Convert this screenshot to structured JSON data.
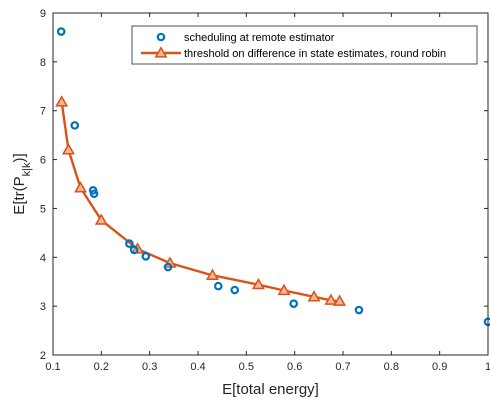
{
  "chart_data": {
    "type": "scatter",
    "xlabel": "E[total energy]",
    "ylabel": "E[tr(P_{k|k})]",
    "xlim": [
      0.1,
      1.0
    ],
    "ylim": [
      2,
      9
    ],
    "x_ticks": [
      0.1,
      0.2,
      0.3,
      0.4,
      0.5,
      0.6,
      0.7,
      0.8,
      0.9,
      1.0
    ],
    "x_tick_labels": [
      "0.1",
      "0.2",
      "0.3",
      "0.4",
      "0.5",
      "0.6",
      "0.7",
      "0.8",
      "0.9",
      "1"
    ],
    "y_ticks": [
      2,
      3,
      4,
      5,
      6,
      7,
      8,
      9
    ],
    "y_tick_labels": [
      "2",
      "3",
      "4",
      "5",
      "6",
      "7",
      "8",
      "9"
    ],
    "grid": false,
    "legend_position": "top-right",
    "series": [
      {
        "name": "scheduling at remote estimator",
        "kind": "scatter",
        "marker": "circle",
        "color": "#0072BD",
        "x": [
          0.117,
          0.145,
          0.183,
          0.185,
          0.258,
          0.268,
          0.292,
          0.338,
          0.442,
          0.476,
          0.598,
          0.733,
          1.0
        ],
        "y": [
          8.62,
          6.7,
          5.37,
          5.3,
          4.28,
          4.15,
          4.02,
          3.8,
          3.41,
          3.33,
          3.05,
          2.92,
          2.68
        ]
      },
      {
        "name": "threshold on difference in state estimates, round robin",
        "kind": "line",
        "marker": "triangle",
        "color": "#D95319",
        "x": [
          0.118,
          0.132,
          0.157,
          0.2,
          0.275,
          0.342,
          0.43,
          0.525,
          0.578,
          0.64,
          0.675,
          0.693
        ],
        "y": [
          7.18,
          6.2,
          5.42,
          4.76,
          4.17,
          3.88,
          3.63,
          3.44,
          3.32,
          3.19,
          3.12,
          3.1
        ]
      }
    ]
  }
}
